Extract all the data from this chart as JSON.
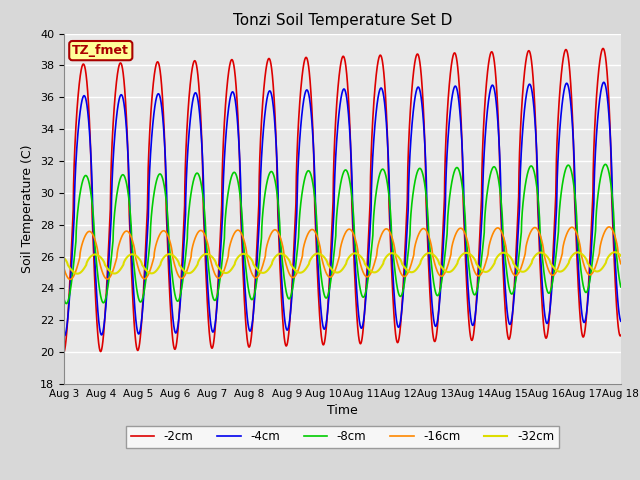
{
  "title": "Tonzi Soil Temperature Set D",
  "xlabel": "Time",
  "ylabel": "Soil Temperature (C)",
  "ylim": [
    18,
    40
  ],
  "xlim": [
    0,
    15
  ],
  "bg_color": "#e8e8e8",
  "grid_color": "#ffffff",
  "legend_label": "TZ_fmet",
  "legend_bg": "#ffff99",
  "legend_border": "#aa0000",
  "x_tick_labels": [
    "Aug 3",
    "Aug 4",
    "Aug 5",
    "Aug 6",
    "Aug 7",
    "Aug 8",
    "Aug 9",
    "Aug 10",
    "Aug 11",
    "Aug 12",
    "Aug 13",
    "Aug 14",
    "Aug 15",
    "Aug 16",
    "Aug 17",
    "Aug 18"
  ],
  "series": {
    "-2cm": {
      "color": "#dd0000",
      "linestyle": "-",
      "linewidth": 1.2,
      "amplitude": 9.0,
      "mean": 29.0,
      "phase": 0.0,
      "phase2": 0.0,
      "amp2": 2.5,
      "trend": 0.07
    },
    "-4cm": {
      "color": "#0000ee",
      "linestyle": "-",
      "linewidth": 1.2,
      "amplitude": 7.5,
      "mean": 28.5,
      "phase": 0.15,
      "phase2": 0.15,
      "amp2": 1.8,
      "trend": 0.06
    },
    "-8cm": {
      "color": "#00cc00",
      "linestyle": "-",
      "linewidth": 1.2,
      "amplitude": 4.0,
      "mean": 27.0,
      "phase": 0.45,
      "phase2": 0.45,
      "amp2": 0.8,
      "trend": 0.05
    },
    "-16cm": {
      "color": "#ff8800",
      "linestyle": "-",
      "linewidth": 1.2,
      "amplitude": 1.5,
      "mean": 26.0,
      "phase": 1.1,
      "phase2": 1.1,
      "amp2": 0.5,
      "trend": 0.02
    },
    "-32cm": {
      "color": "#dddd00",
      "linestyle": "-",
      "linewidth": 1.5,
      "amplitude": 0.6,
      "mean": 25.5,
      "phase": 2.2,
      "phase2": 2.2,
      "amp2": 0.2,
      "trend": 0.01
    }
  }
}
